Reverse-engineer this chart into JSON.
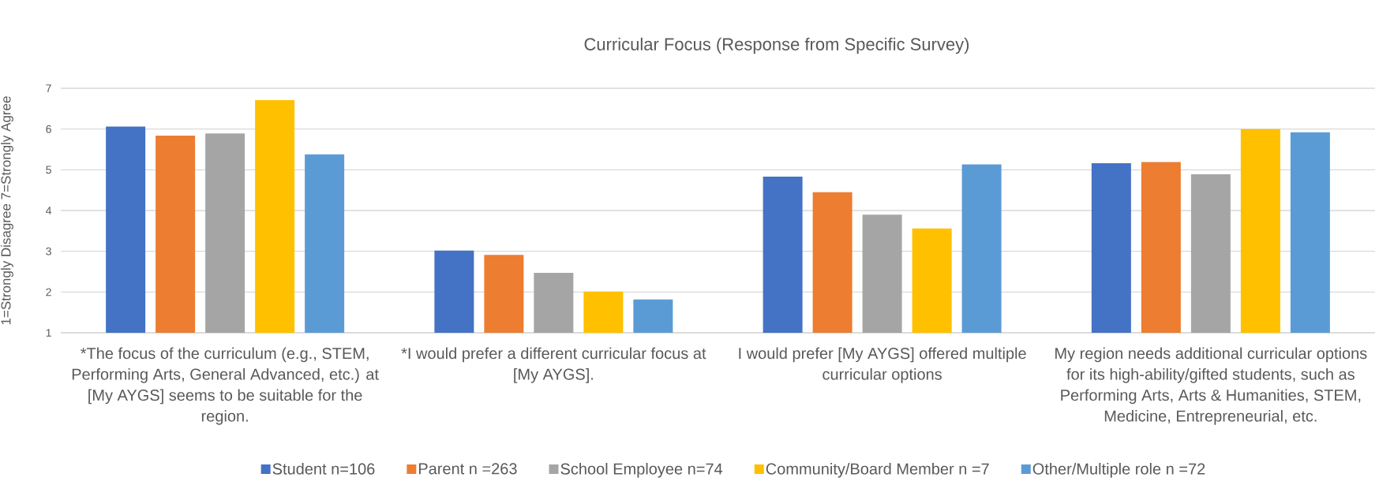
{
  "chart_data": {
    "type": "bar",
    "title": "Curricular Focus (Response from Specific Survey)",
    "ylabel": "1=Strongly Disagree 7=Strongly Agree",
    "categories": [
      "*The focus of the curriculum (e.g., STEM, Performing Arts, General Advanced, etc.) at [My AYGS] seems to be suitable for the region.",
      "*I would prefer a different curricular focus at [My AYGS].",
      "I would prefer [My AYGS] offered multiple curricular options",
      "My region needs additional curricular options for its high-ability/gifted students, such as Performing Arts, Arts & Humanities, STEM, Medicine, Entrepreneurial, etc."
    ],
    "series": [
      {
        "name": "Student n=106",
        "color": "#4472c4",
        "values": [
          6.06,
          3.02,
          4.83,
          5.16
        ]
      },
      {
        "name": "Parent n =263",
        "color": "#ed7d31",
        "values": [
          5.84,
          2.91,
          4.45,
          5.19
        ]
      },
      {
        "name": "School Employee n=74",
        "color": "#a5a5a5",
        "values": [
          5.89,
          2.47,
          3.9,
          4.89
        ]
      },
      {
        "name": "Community/Board Member n =7",
        "color": "#ffc000",
        "values": [
          6.71,
          2.01,
          3.56,
          6.0
        ]
      },
      {
        "name": "Other/Multiple role n =72",
        "color": "#5b9bd5",
        "values": [
          5.38,
          1.82,
          5.13,
          5.92
        ]
      }
    ],
    "ylim": [
      1,
      7
    ],
    "yticks": [
      1,
      2,
      3,
      4,
      5,
      6,
      7
    ],
    "grid": "y",
    "legend": "bottom"
  }
}
